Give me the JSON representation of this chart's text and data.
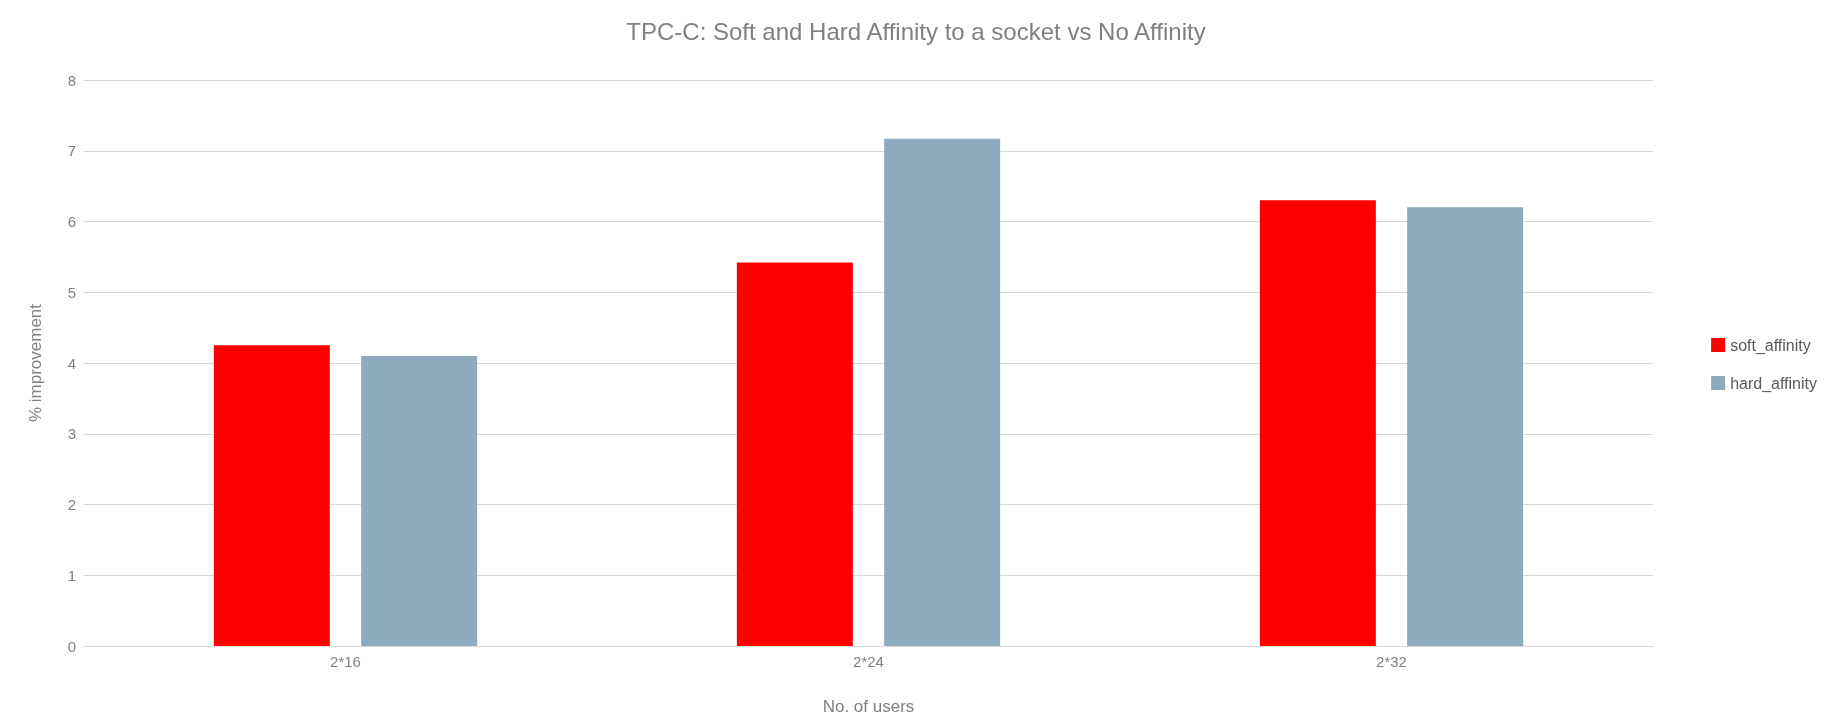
{
  "chart_data": {
    "type": "bar",
    "title": "TPC-C: Soft and Hard Affinity to a socket vs No Affinity",
    "xlabel": "No. of users",
    "ylabel": "% improvement",
    "categories": [
      "2*16",
      "2*24",
      "2*32"
    ],
    "series": [
      {
        "name": "soft_affinity",
        "color": "#ff0000",
        "values": [
          4.25,
          5.42,
          6.3
        ]
      },
      {
        "name": "hard_affinity",
        "color": "#8eabbd",
        "values": [
          4.1,
          7.17,
          6.2
        ]
      }
    ],
    "ylim": [
      0,
      8
    ],
    "yticks": [
      0,
      1,
      2,
      3,
      4,
      5,
      6,
      7,
      8
    ],
    "grid": "y",
    "legend": "right"
  }
}
